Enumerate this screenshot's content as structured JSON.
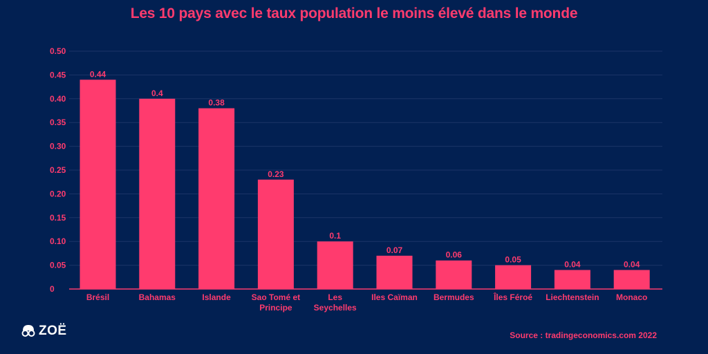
{
  "title": "Les 10 pays avec le taux population le moins élevé dans le monde",
  "source": "Source : tradingeconomics.com 2022",
  "logo": {
    "text": "ZOË",
    "icon": "glasses-face-icon"
  },
  "colors": {
    "background": "#022052",
    "bar": "#ff3b6e",
    "text": "#ff3b6e",
    "grid": "#1c3568"
  },
  "chart_data": {
    "type": "bar",
    "categories": [
      "Brésil",
      "Bahamas",
      "Islande",
      "Sao Tomé et Principe",
      "Les Seychelles",
      "Iles Caïman",
      "Bermudes",
      "Îles Féroé",
      "Liechtenstein",
      "Monaco"
    ],
    "category_lines": [
      [
        "Brésil"
      ],
      [
        "Bahamas"
      ],
      [
        "Islande"
      ],
      [
        "Sao Tomé et",
        "Principe"
      ],
      [
        "Les",
        "Seychelles"
      ],
      [
        "Iles Caïman"
      ],
      [
        "Bermudes"
      ],
      [
        "Îles Féroé"
      ],
      [
        "Liechtenstein"
      ],
      [
        "Monaco"
      ]
    ],
    "values": [
      0.44,
      0.4,
      0.38,
      0.23,
      0.1,
      0.07,
      0.06,
      0.05,
      0.04,
      0.04
    ],
    "value_labels": [
      "0.44",
      "0.4",
      "0.38",
      "0.23",
      "0.1",
      "0.07",
      "0.06",
      "0.05",
      "0.04",
      "0.04"
    ],
    "yticks": [
      "0",
      "0.05",
      "0.10",
      "0.15",
      "0.20",
      "0.25",
      "0.30",
      "0.35",
      "0.40",
      "0.45",
      "0.50"
    ],
    "ylim": [
      0,
      0.5
    ],
    "grid": true
  }
}
